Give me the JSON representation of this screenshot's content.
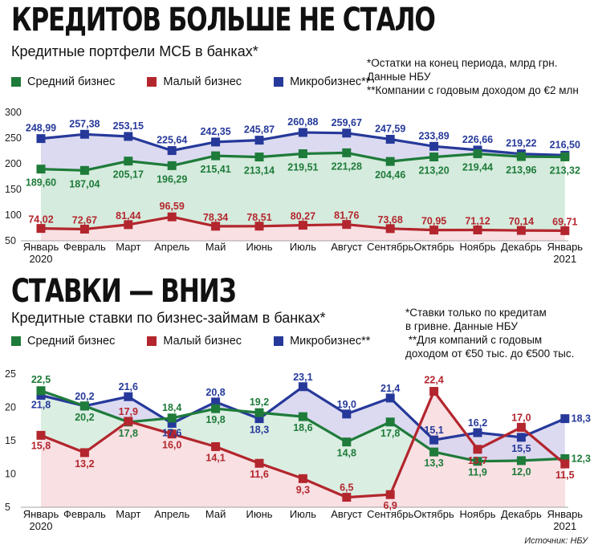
{
  "section1": {
    "headline": "КРЕДИТОВ БОЛЬШЕ НЕ СТАЛО",
    "subtitle": "Кредитные портфели МСБ в банках*",
    "note_line1": "*Остатки на конец периода, млрд грн.",
    "note_line2": "Данные НБУ",
    "note_line3": "**Компании с годовым доходом до €2 млн"
  },
  "section2": {
    "headline": "СТАВКИ — ВНИЗ",
    "subtitle": "Кредитные ставки по бизнес-займам в банках*",
    "note_line1": "*Ставки только по кредитам",
    "note_line2": "в гривне. Данные НБУ",
    "note_line3": " **Для компаний с годовым",
    "note_line4": "доходом от €50 тыс. до €500 тыс."
  },
  "legend": {
    "medium": "Средний бизнес",
    "small": "Малый бизнес",
    "micro": "Микробизнес**"
  },
  "colors": {
    "medium": "#1e7b3a",
    "small": "#b3262d",
    "micro": "#26399a",
    "fill_green": "#d5ebdd",
    "fill_blue": "#d8d6ef",
    "fill_pink": "#f8e0e3"
  },
  "source": "Источник: НБУ",
  "chart_data": [
    {
      "type": "line",
      "title": "Кредитные портфели МСБ в банках*",
      "categories": [
        "Январь\n2020",
        "Февраль",
        "Март",
        "Апрель",
        "Май",
        "Июнь",
        "Июль",
        "Август",
        "Сентябрь",
        "Октябрь",
        "Ноябрь",
        "Декабрь",
        "Январь\n2021"
      ],
      "yticks": [
        50,
        100,
        150,
        200,
        250,
        300
      ],
      "ylim": [
        50,
        300
      ],
      "series": [
        {
          "name": "Микробизнес**",
          "key": "micro",
          "values": [
            248.99,
            257.38,
            253.15,
            225.64,
            242.35,
            245.87,
            260.88,
            259.67,
            247.59,
            233.89,
            226.66,
            219.22,
            216.5
          ],
          "labels": [
            "248,99",
            "257,38",
            "253,15",
            "225,64",
            "242,35",
            "245,87",
            "260,88",
            "259,67",
            "247,59",
            "233,89",
            "226,66",
            "219,22",
            "216,50"
          ]
        },
        {
          "name": "Средний бизнес",
          "key": "medium",
          "values": [
            189.6,
            187.04,
            205.17,
            196.29,
            215.41,
            213.14,
            219.51,
            221.28,
            204.46,
            213.2,
            219.44,
            213.96,
            213.32
          ],
          "labels": [
            "189,60",
            "187,04",
            "205,17",
            "196,29",
            "215,41",
            "213,14",
            "219,51",
            "221,28",
            "204,46",
            "213,20",
            "219,44",
            "213,96",
            "213,32"
          ]
        },
        {
          "name": "Малый бизнес",
          "key": "small",
          "values": [
            74.02,
            72.67,
            81.44,
            96.59,
            78.34,
            78.51,
            80.27,
            81.76,
            73.68,
            70.95,
            71.12,
            70.14,
            69.71
          ],
          "labels": [
            "74,02",
            "72,67",
            "81,44",
            "96,59",
            "78,34",
            "78,51",
            "80,27",
            "81,76",
            "73,68",
            "70,95",
            "71,12",
            "70,14",
            "69,71"
          ]
        }
      ]
    },
    {
      "type": "line",
      "title": "Кредитные ставки по бизнес-займам в банках*",
      "categories": [
        "Январь\n2020",
        "Февраль",
        "Март",
        "Апрель",
        "Май",
        "Июнь",
        "Июль",
        "Август",
        "Сентябрь",
        "Октябрь",
        "Ноябрь",
        "Декабрь",
        "Январь\n2021"
      ],
      "yticks": [
        5,
        10,
        15,
        20,
        25
      ],
      "ylim": [
        5,
        25
      ],
      "series": [
        {
          "name": "Микробизнес**",
          "key": "micro",
          "values": [
            21.8,
            20.2,
            21.6,
            17.6,
            20.8,
            18.3,
            23.1,
            19.0,
            21.4,
            15.1,
            16.2,
            15.5,
            18.3
          ],
          "labels": [
            "21,8",
            "20,2",
            "21,6",
            "17,6",
            "20,8",
            "18,3",
            "23,1",
            "19,0",
            "21,4",
            "15,1",
            "16,2",
            "15,5",
            "18,3"
          ]
        },
        {
          "name": "Средний бизнес",
          "key": "medium",
          "values": [
            22.5,
            20.2,
            17.8,
            18.4,
            19.8,
            19.2,
            18.6,
            14.8,
            17.8,
            13.3,
            11.9,
            12.0,
            12.3
          ],
          "labels": [
            "22,5",
            "20,2",
            "17,8",
            "18,4",
            "19,8",
            "19,2",
            "18,6",
            "14,8",
            "17,8",
            "13,3",
            "11,9",
            "12,0",
            "12,3"
          ]
        },
        {
          "name": "Малый бизнес",
          "key": "small",
          "values": [
            15.8,
            13.2,
            17.9,
            16.0,
            14.1,
            11.6,
            9.3,
            6.5,
            6.9,
            22.4,
            13.7,
            17.0,
            11.5
          ],
          "labels": [
            "15,8",
            "13,2",
            "17,9",
            "16,0",
            "14,1",
            "11,6",
            "9,3",
            "6,5",
            "6,9",
            "22,4",
            "13,7",
            "17,0",
            "11,5"
          ]
        }
      ]
    }
  ]
}
